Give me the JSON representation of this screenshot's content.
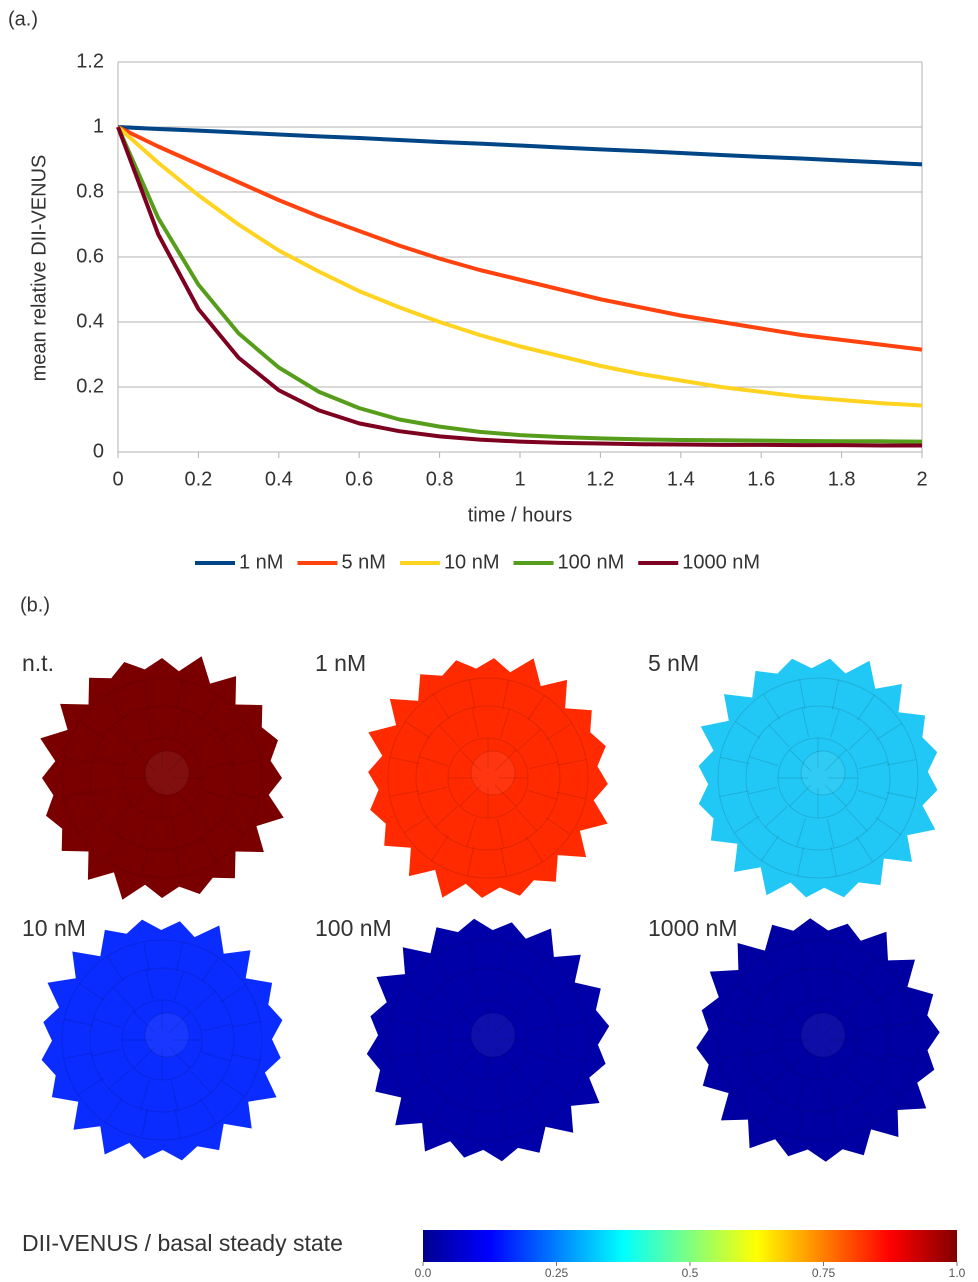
{
  "chart_data": [
    {
      "type": "line",
      "panel_label": "(a.)",
      "x_label": "time / hours",
      "y_label": "mean relative DII-VENUS",
      "x": [
        0,
        0.1,
        0.2,
        0.3,
        0.4,
        0.5,
        0.6,
        0.7,
        0.8,
        0.9,
        1,
        1.1,
        1.2,
        1.3,
        1.4,
        1.5,
        1.6,
        1.7,
        1.8,
        1.9,
        2
      ],
      "xlim": [
        0,
        2
      ],
      "xticks": [
        0,
        0.2,
        0.4,
        0.6,
        0.8,
        1,
        1.2,
        1.4,
        1.6,
        1.8,
        2
      ],
      "ylim": [
        0,
        1.2
      ],
      "yticks": [
        0,
        0.2,
        0.4,
        0.6,
        0.8,
        1,
        1.2
      ],
      "grid": true,
      "legend": "bottom",
      "series": [
        {
          "name": "1 nM",
          "color": "#004586",
          "values": [
            1,
            0.994,
            0.989,
            0.983,
            0.977,
            0.971,
            0.966,
            0.96,
            0.954,
            0.949,
            0.943,
            0.937,
            0.931,
            0.926,
            0.92,
            0.914,
            0.908,
            0.903,
            0.897,
            0.891,
            0.885
          ]
        },
        {
          "name": "5 nM",
          "color": "#ff420e",
          "values": [
            1,
            0.94,
            0.885,
            0.83,
            0.775,
            0.725,
            0.68,
            0.635,
            0.595,
            0.56,
            0.53,
            0.5,
            0.47,
            0.445,
            0.42,
            0.4,
            0.38,
            0.36,
            0.345,
            0.33,
            0.315
          ]
        },
        {
          "name": "10 nM",
          "color": "#ffd320",
          "values": [
            1,
            0.89,
            0.79,
            0.7,
            0.62,
            0.555,
            0.495,
            0.445,
            0.4,
            0.36,
            0.325,
            0.295,
            0.265,
            0.24,
            0.22,
            0.2,
            0.185,
            0.17,
            0.16,
            0.15,
            0.143
          ]
        },
        {
          "name": "100 nM",
          "color": "#579d1c",
          "values": [
            1,
            0.72,
            0.515,
            0.365,
            0.26,
            0.185,
            0.135,
            0.1,
            0.078,
            0.062,
            0.052,
            0.046,
            0.042,
            0.039,
            0.037,
            0.036,
            0.035,
            0.034,
            0.033,
            0.033,
            0.032
          ]
        },
        {
          "name": "1000 nM",
          "color": "#7e0021",
          "values": [
            1,
            0.67,
            0.44,
            0.29,
            0.19,
            0.128,
            0.088,
            0.064,
            0.048,
            0.038,
            0.032,
            0.028,
            0.026,
            0.024,
            0.023,
            0.022,
            0.022,
            0.021,
            0.021,
            0.02,
            0.02
          ]
        }
      ]
    },
    {
      "type": "image-grid",
      "panel_label": "(b.)",
      "panels": [
        {
          "label": "n.t.",
          "color": "#7a0000"
        },
        {
          "label": "1 nM",
          "color": "#ff2a00"
        },
        {
          "label": "5 nM",
          "color": "#22c8f5"
        },
        {
          "label": "10 nM",
          "color": "#0a2cff"
        },
        {
          "label": "100 nM",
          "color": "#0000a8"
        },
        {
          "label": "1000 nM",
          "color": "#0000a2"
        }
      ],
      "colorbar": {
        "label": "DII-VENUS / basal steady state",
        "lim": [
          0,
          1
        ],
        "ticks": [
          {
            "value": 0,
            "label": "0.0"
          },
          0.25,
          0.5,
          0.75,
          {
            "value": 1,
            "label": "1.0"
          }
        ]
      }
    }
  ]
}
